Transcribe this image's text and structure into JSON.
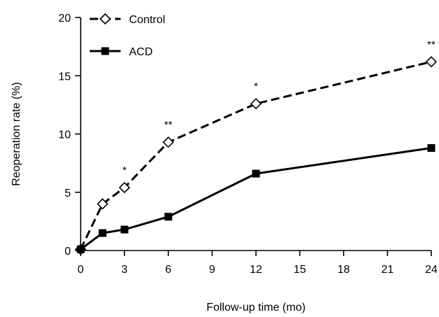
{
  "chart_data": {
    "type": "line",
    "title": "",
    "xlabel": "Follow-up time (mo)",
    "ylabel": "Reoperation rate (%)",
    "xlim": [
      0,
      24
    ],
    "ylim": [
      0,
      20
    ],
    "xticks": [
      0,
      3,
      6,
      9,
      12,
      15,
      18,
      21,
      24
    ],
    "yticks": [
      0,
      5,
      10,
      15,
      20
    ],
    "grid": false,
    "legend_position": "top-left",
    "series": [
      {
        "name": "Control",
        "style": "dashed",
        "marker": "open-diamond",
        "color": "#000000",
        "x": [
          0,
          1.5,
          3,
          6,
          12,
          24
        ],
        "y": [
          0.1,
          4.0,
          5.4,
          9.3,
          12.6,
          16.2
        ]
      },
      {
        "name": "ACD",
        "style": "solid",
        "marker": "filled-square",
        "color": "#000000",
        "x": [
          0,
          1.5,
          3,
          6,
          12,
          24
        ],
        "y": [
          0.1,
          1.5,
          1.8,
          2.9,
          6.6,
          8.8
        ]
      }
    ],
    "annotations": [
      {
        "x": 3,
        "text": "*"
      },
      {
        "x": 6,
        "text": "**"
      },
      {
        "x": 12,
        "text": "*"
      },
      {
        "x": 24,
        "text": "**"
      }
    ]
  }
}
